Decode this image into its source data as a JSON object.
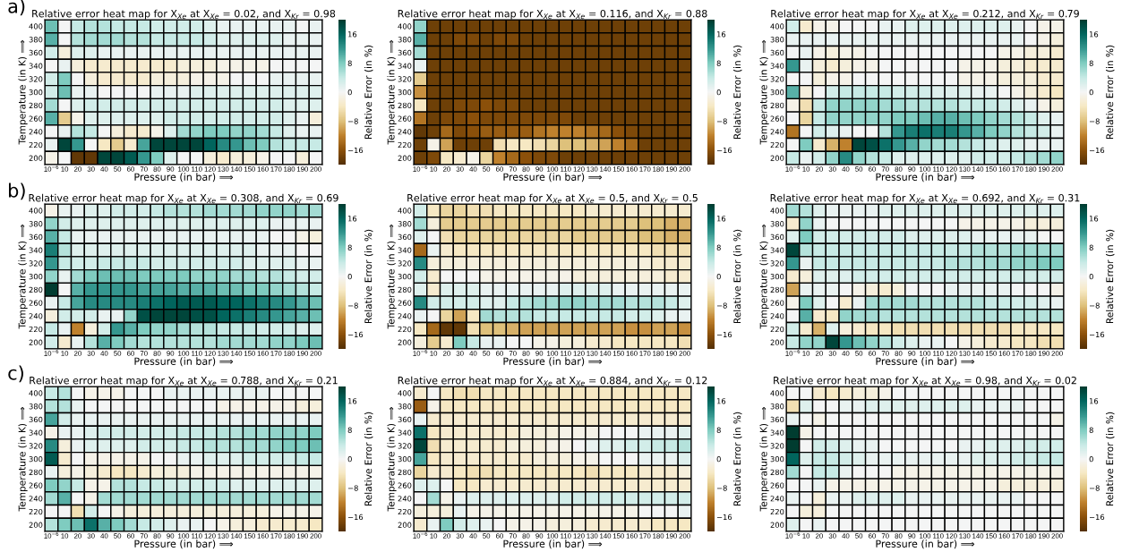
{
  "chart_data": [
    {
      "type": "heatmap",
      "title": "Relative error heat map for X$_{Xe}$ at X$_{Xe}$ = 0.02, and X$_{Kr}$ = 0.98",
      "xlabel": "Pressure (in bar) ⟹",
      "ylabel": "Temperature (in K) ⟹",
      "clabel": "Relative Error (in %)",
      "annotations": [
        "a)"
      ],
      "categories": [
        "10$^{−6}$",
        "10",
        "20",
        "30",
        "40",
        "50",
        "60",
        "70",
        "80",
        "90",
        "100",
        "110",
        "120",
        "130",
        "140",
        "150",
        "160",
        "170",
        "180",
        "190",
        "200"
      ],
      "y_categories": [
        "400",
        "380",
        "360",
        "340",
        "320",
        "300",
        "280",
        "260",
        "240",
        "220",
        "200"
      ],
      "clim": [
        -20,
        20
      ],
      "cticks": [
        -16,
        -8,
        0,
        8,
        16
      ],
      "cells": [
        [
          9,
          0,
          4,
          5,
          5,
          4,
          4,
          4,
          3,
          3,
          3,
          3,
          2,
          1,
          1,
          1,
          1,
          1,
          1,
          0,
          1
        ],
        [
          10,
          0,
          5,
          6,
          6,
          6,
          5,
          5,
          4,
          4,
          4,
          4,
          3,
          2,
          2,
          2,
          2,
          2,
          1,
          1,
          1
        ],
        [
          3,
          -2,
          2,
          2,
          1,
          1,
          1,
          1,
          1,
          1,
          1,
          1,
          1,
          1,
          1,
          1,
          1,
          1,
          1,
          1,
          1
        ],
        [
          0,
          1,
          -2,
          -3,
          -3,
          -3,
          -3,
          -3,
          -3,
          -3,
          -2,
          -2,
          -2,
          -1,
          -1,
          -1,
          -1,
          0,
          0,
          0,
          0
        ],
        [
          3,
          8,
          0,
          -2,
          -3,
          -3,
          -3,
          -3,
          -2,
          -2,
          -2,
          -1,
          -1,
          -1,
          0,
          0,
          0,
          1,
          1,
          1,
          1
        ],
        [
          3,
          9,
          1,
          1,
          0,
          0,
          0,
          0,
          1,
          1,
          1,
          2,
          2,
          2,
          2,
          2,
          2,
          2,
          2,
          2,
          2
        ],
        [
          6,
          0,
          2,
          3,
          3,
          3,
          3,
          3,
          3,
          3,
          3,
          3,
          3,
          3,
          3,
          3,
          3,
          3,
          2,
          2,
          2
        ],
        [
          10,
          -7,
          -1,
          2,
          2,
          2,
          2,
          2,
          2,
          3,
          3,
          3,
          3,
          3,
          3,
          3,
          3,
          3,
          2,
          1,
          -2
        ],
        [
          0,
          1,
          5,
          4,
          0,
          -2,
          -3,
          -3,
          -1,
          2,
          6,
          7,
          8,
          8,
          7,
          7,
          6,
          4,
          2,
          1,
          1
        ],
        [
          1,
          19,
          12,
          0,
          -4,
          -7,
          -3,
          11,
          19,
          19,
          19,
          19,
          16,
          13,
          12,
          9,
          8,
          5,
          4,
          4,
          4
        ],
        [
          -1,
          0,
          -19,
          -19,
          19,
          19,
          17,
          12,
          8,
          2,
          0,
          0,
          -2,
          -3,
          -2,
          -2,
          -1,
          0,
          0,
          -2,
          0
        ]
      ]
    },
    {
      "type": "heatmap",
      "title": "Relative error heat map for X$_{Xe}$ at X$_{Xe}$ = 0.116, and X$_{Kr}$ = 0.88",
      "xlabel": "Pressure (in bar) ⟹",
      "ylabel": "Temperature (in K) ⟹",
      "clabel": "Relative Error (in %)",
      "categories": [
        "10$^{−6}$",
        "10",
        "20",
        "30",
        "40",
        "50",
        "60",
        "70",
        "80",
        "90",
        "100",
        "110",
        "120",
        "130",
        "140",
        "150",
        "160",
        "170",
        "180",
        "190",
        "200"
      ],
      "y_categories": [
        "400",
        "380",
        "360",
        "340",
        "320",
        "300",
        "280",
        "260",
        "240",
        "220",
        "200"
      ],
      "clim": [
        -20,
        20
      ],
      "cticks": [
        -16,
        -8,
        0,
        8,
        16
      ],
      "cells": [
        [
          7,
          -18,
          -18,
          -18,
          -18,
          -18,
          -18,
          -18,
          -18,
          -18,
          -18,
          -18,
          -18,
          -18,
          -18,
          -18,
          -18,
          -18,
          -18,
          -18,
          -18
        ],
        [
          10,
          -18,
          -18,
          -17,
          -17,
          -18,
          -17,
          -17,
          -18,
          -18,
          -18,
          -18,
          -18,
          -18,
          -18,
          -18,
          -18,
          -18,
          -18,
          -18,
          -18
        ],
        [
          6,
          -18,
          -18,
          -18,
          -18,
          -18,
          -18,
          -18,
          -18,
          -18,
          -18,
          -18,
          -18,
          -18,
          -18,
          -18,
          -18,
          -18,
          -18,
          -18,
          -18
        ],
        [
          1,
          -18,
          -18,
          -18,
          -18,
          -18,
          -18,
          -18,
          -18,
          -18,
          -18,
          -18,
          -18,
          -18,
          -18,
          -18,
          -18,
          -18,
          -18,
          -18,
          -18
        ],
        [
          -7,
          -18,
          -18,
          -18,
          -18,
          -18,
          -18,
          -18,
          -18,
          -18,
          -18,
          -18,
          -18,
          -18,
          -18,
          -18,
          -18,
          -18,
          -18,
          -18,
          -18
        ],
        [
          -11,
          -18,
          -18,
          -18,
          -18,
          -18,
          -18,
          -18,
          -18,
          -18,
          -18,
          -18,
          -18,
          -18,
          -18,
          -18,
          -18,
          -18,
          -18,
          -18,
          -18
        ],
        [
          -4,
          -18,
          -18,
          -17,
          -17,
          -16,
          -17,
          -17,
          -18,
          -18,
          -18,
          -18,
          -18,
          -18,
          -18,
          -18,
          -18,
          -18,
          -18,
          -18,
          -18
        ],
        [
          -13,
          -18,
          -17,
          -17,
          -16,
          -17,
          -17,
          -17,
          -17,
          -17,
          -17,
          -17,
          -18,
          -18,
          -18,
          -18,
          -18,
          -18,
          -18,
          -18,
          -18
        ],
        [
          -19,
          -18,
          -14,
          -17,
          -16,
          -15,
          -15,
          -15,
          -15,
          -13,
          -12,
          -12,
          -12,
          -13,
          -14,
          -16,
          -17,
          -18,
          -18,
          -18,
          -18
        ],
        [
          -18,
          -1,
          -10,
          -18,
          -18,
          -18,
          -5,
          -4,
          -4,
          -5,
          -6,
          -8,
          -8,
          -9,
          -10,
          -12,
          -14,
          -18,
          -18,
          -18,
          -18
        ],
        [
          -18,
          -17,
          -4,
          -3,
          -1,
          -6,
          -12,
          -14,
          -16,
          -17,
          -17,
          -18,
          -18,
          -18,
          -18,
          -18,
          -18,
          -18,
          -18,
          -18,
          -18
        ]
      ]
    },
    {
      "type": "heatmap",
      "title": "Relative error heat map for X$_{Xe}$ at X$_{Xe}$ = 0.212, and X$_{Kr}$ = 0.79",
      "xlabel": "Pressure (in bar) ⟹",
      "ylabel": "Temperature (in K) ⟹",
      "clabel": "Relative Error (in %)",
      "categories": [
        "10$^{−6}$",
        "10",
        "20",
        "30",
        "40",
        "50",
        "60",
        "70",
        "80",
        "90",
        "100",
        "110",
        "120",
        "130",
        "140",
        "150",
        "160",
        "170",
        "180",
        "190",
        "200"
      ],
      "y_categories": [
        "400",
        "380",
        "360",
        "340",
        "320",
        "300",
        "280",
        "260",
        "240",
        "220",
        "200"
      ],
      "clim": [
        -20,
        20
      ],
      "cticks": [
        -16,
        -8,
        0,
        8,
        16
      ],
      "cells": [
        [
          3,
          -3,
          -1,
          -1,
          0,
          0,
          0,
          1,
          1,
          2,
          2,
          2,
          2,
          2,
          2,
          2,
          2,
          1,
          0,
          -1,
          -1
        ],
        [
          1,
          1,
          1,
          1,
          1,
          1,
          1,
          1,
          1,
          1,
          1,
          1,
          1,
          1,
          1,
          1,
          1,
          1,
          0,
          -1,
          -2
        ],
        [
          0,
          1,
          -1,
          -2,
          -1,
          -1,
          0,
          0,
          0,
          0,
          0,
          0,
          0,
          0,
          0,
          0,
          -1,
          -1,
          -2,
          -2,
          -3
        ],
        [
          12,
          1,
          -2,
          -3,
          -2,
          -1,
          -1,
          0,
          0,
          0,
          0,
          0,
          0,
          -1,
          -1,
          -1,
          -2,
          -2,
          -3,
          -3,
          -3
        ],
        [
          0,
          0,
          -2,
          -1,
          -1,
          0,
          0,
          0,
          0,
          0,
          0,
          0,
          0,
          -1,
          -1,
          -1,
          -2,
          -2,
          -2,
          -3,
          -3
        ],
        [
          10,
          -2,
          0,
          3,
          4,
          4,
          4,
          4,
          3,
          3,
          3,
          2,
          2,
          2,
          1,
          1,
          0,
          -1,
          -2,
          -3,
          -4
        ],
        [
          -1,
          -5,
          4,
          7,
          7,
          7,
          7,
          6,
          6,
          5,
          5,
          5,
          5,
          4,
          4,
          4,
          3,
          2,
          1,
          -1,
          -2
        ],
        [
          0,
          -6,
          4,
          7,
          7,
          7,
          7,
          7,
          8,
          8,
          9,
          10,
          10,
          9,
          8,
          7,
          6,
          5,
          4,
          2,
          1
        ],
        [
          -13,
          0,
          3,
          2,
          1,
          0,
          0,
          5,
          12,
          14,
          15,
          14,
          14,
          12,
          10,
          8,
          7,
          5,
          4,
          3,
          1
        ],
        [
          0,
          8,
          -3,
          -9,
          -12,
          19,
          18,
          15,
          12,
          10,
          7,
          6,
          6,
          5,
          4,
          3,
          2,
          2,
          1,
          1,
          1
        ],
        [
          4,
          1,
          3,
          7,
          13,
          7,
          5,
          4,
          2,
          2,
          2,
          2,
          2,
          2,
          3,
          3,
          3,
          4,
          5,
          6,
          7
        ]
      ]
    },
    {
      "type": "heatmap",
      "title": "Relative error heat map for X$_{Xe}$ at X$_{Xe}$ = 0.308, and X$_{Kr}$ = 0.69",
      "xlabel": "Pressure (in bar) ⟹",
      "ylabel": "Temperature (in K) ⟹",
      "clabel": "Relative Error (in %)",
      "annotations": [
        "b)"
      ],
      "categories": [
        "10$^{−6}$",
        "10",
        "20",
        "30",
        "40",
        "50",
        "60",
        "70",
        "80",
        "90",
        "100",
        "110",
        "120",
        "130",
        "140",
        "150",
        "160",
        "170",
        "180",
        "190",
        "200"
      ],
      "y_categories": [
        "400",
        "380",
        "360",
        "340",
        "320",
        "300",
        "280",
        "260",
        "240",
        "220",
        "200"
      ],
      "clim": [
        -20,
        20
      ],
      "cticks": [
        -16,
        -8,
        0,
        8,
        16
      ],
      "cells": [
        [
          -1,
          1,
          1,
          2,
          2,
          3,
          3,
          3,
          4,
          5,
          5,
          5,
          6,
          6,
          6,
          6,
          7,
          7,
          7,
          6,
          6
        ],
        [
          7,
          3,
          2,
          2,
          2,
          2,
          2,
          2,
          2,
          2,
          2,
          2,
          2,
          2,
          2,
          2,
          2,
          1,
          1,
          1,
          1
        ],
        [
          10,
          4,
          1,
          1,
          1,
          1,
          1,
          1,
          1,
          1,
          1,
          1,
          1,
          1,
          1,
          1,
          1,
          0,
          0,
          -1,
          -2
        ],
        [
          14,
          5,
          2,
          2,
          2,
          2,
          2,
          2,
          2,
          2,
          2,
          2,
          2,
          2,
          2,
          2,
          1,
          1,
          1,
          0,
          0
        ],
        [
          12,
          4,
          3,
          3,
          4,
          4,
          4,
          4,
          3,
          3,
          3,
          3,
          3,
          3,
          3,
          2,
          2,
          2,
          2,
          1,
          1
        ],
        [
          7,
          1,
          6,
          8,
          9,
          9,
          9,
          8,
          8,
          8,
          8,
          7,
          7,
          7,
          6,
          6,
          5,
          5,
          4,
          3,
          3
        ],
        [
          20,
          0,
          10,
          12,
          12,
          12,
          12,
          11,
          11,
          11,
          10,
          10,
          10,
          9,
          9,
          8,
          8,
          7,
          6,
          5,
          4
        ],
        [
          1,
          4,
          11,
          13,
          13,
          13,
          13,
          14,
          15,
          16,
          17,
          17,
          17,
          16,
          16,
          15,
          14,
          13,
          12,
          10,
          9
        ],
        [
          -2,
          3,
          3,
          3,
          1,
          1,
          7,
          18,
          19,
          19,
          19,
          18,
          18,
          16,
          15,
          14,
          13,
          12,
          11,
          10,
          9
        ],
        [
          4,
          1,
          -12,
          -2,
          3,
          12,
          10,
          8,
          7,
          7,
          6,
          5,
          5,
          4,
          4,
          4,
          3,
          3,
          3,
          2,
          2
        ],
        [
          3,
          -3,
          1,
          5,
          10,
          8,
          6,
          5,
          5,
          5,
          5,
          5,
          5,
          6,
          6,
          6,
          6,
          7,
          7,
          8,
          9
        ]
      ]
    },
    {
      "type": "heatmap",
      "title": "Relative error heat map for X$_{Xe}$ at X$_{Xe}$ = 0.5, and X$_{Kr}$ = 0.5",
      "xlabel": "Pressure (in bar) ⟹",
      "ylabel": "Temperature (in K) ⟹",
      "clabel": "Relative Error (in %)",
      "categories": [
        "10$^{−6}$",
        "10",
        "20",
        "30",
        "40",
        "50",
        "60",
        "70",
        "80",
        "90",
        "100",
        "110",
        "120",
        "130",
        "140",
        "150",
        "160",
        "170",
        "180",
        "190",
        "200"
      ],
      "y_categories": [
        "400",
        "380",
        "360",
        "340",
        "320",
        "300",
        "280",
        "260",
        "240",
        "220",
        "200"
      ],
      "clim": [
        -20,
        20
      ],
      "cticks": [
        -16,
        -8,
        0,
        8,
        16
      ],
      "cells": [
        [
          3,
          -4,
          -6,
          -6,
          -5,
          -5,
          -4,
          -4,
          -4,
          -4,
          -4,
          -4,
          -4,
          -3,
          -3,
          -3,
          -3,
          -3,
          -3,
          -3,
          -3
        ],
        [
          6,
          -2,
          -7,
          -7,
          -7,
          -7,
          -7,
          -7,
          -7,
          -7,
          -7,
          -7,
          -7,
          -7,
          -7,
          -7,
          -7,
          -8,
          -8,
          -9,
          -9
        ],
        [
          2,
          0,
          -5,
          -6,
          -6,
          -6,
          -6,
          -6,
          -6,
          -6,
          -6,
          -6,
          -7,
          -7,
          -7,
          -7,
          -7,
          -8,
          -8,
          -9,
          -9
        ],
        [
          -14,
          1,
          -3,
          -4,
          -4,
          -4,
          -4,
          -4,
          -4,
          -4,
          -4,
          -4,
          -4,
          -4,
          -4,
          -4,
          -4,
          -4,
          -5,
          -5,
          -5
        ],
        [
          13,
          -2,
          -2,
          -2,
          -2,
          -2,
          -2,
          -2,
          -2,
          -2,
          -2,
          -2,
          -2,
          -2,
          -2,
          -2,
          -2,
          -2,
          -3,
          -3,
          -3
        ],
        [
          3,
          -3,
          0,
          0,
          0,
          -1,
          -1,
          -1,
          -1,
          -1,
          -1,
          -1,
          -2,
          -2,
          -2,
          -2,
          -2,
          -2,
          -2,
          -3,
          -3
        ],
        [
          2,
          -3,
          2,
          2,
          2,
          1,
          1,
          1,
          1,
          1,
          1,
          2,
          2,
          2,
          2,
          1,
          1,
          1,
          1,
          1,
          1
        ],
        [
          13,
          3,
          3,
          3,
          3,
          2,
          2,
          4,
          5,
          6,
          6,
          7,
          7,
          6,
          6,
          6,
          5,
          5,
          5,
          4,
          2
        ],
        [
          1,
          0,
          -6,
          -10,
          -4,
          6,
          5,
          5,
          5,
          4,
          4,
          4,
          4,
          4,
          4,
          4,
          3,
          3,
          2,
          1,
          1
        ],
        [
          -4,
          -14,
          -19,
          -19,
          -5,
          -8,
          -8,
          -9,
          -10,
          -10,
          -10,
          -10,
          -10,
          -10,
          -10,
          -10,
          -11,
          -11,
          -10,
          -10,
          -11
        ],
        [
          -2,
          -7,
          -3,
          8,
          4,
          1,
          1,
          0,
          0,
          -1,
          -1,
          -2,
          -2,
          -3,
          -3,
          -4,
          -4,
          -4,
          -4,
          -4,
          -5
        ]
      ]
    },
    {
      "type": "heatmap",
      "title": "Relative error heat map for X$_{Xe}$ at X$_{Xe}$ = 0.692, and X$_{Kr}$ = 0.31",
      "xlabel": "Pressure (in bar) ⟹",
      "ylabel": "Temperature (in K) ⟹",
      "clabel": "Relative Error (in %)",
      "categories": [
        "10$^{−6}$",
        "10",
        "20",
        "30",
        "40",
        "50",
        "60",
        "70",
        "80",
        "90",
        "100",
        "110",
        "120",
        "130",
        "140",
        "150",
        "160",
        "170",
        "180",
        "190",
        "200"
      ],
      "y_categories": [
        "400",
        "380",
        "360",
        "340",
        "320",
        "300",
        "280",
        "260",
        "240",
        "220",
        "200"
      ],
      "clim": [
        -20,
        20
      ],
      "cticks": [
        -16,
        -8,
        0,
        8,
        16
      ],
      "cells": [
        [
          6,
          5,
          2,
          1,
          1,
          1,
          1,
          2,
          2,
          2,
          2,
          2,
          2,
          2,
          2,
          2,
          2,
          2,
          2,
          2,
          2
        ],
        [
          -3,
          7,
          1,
          0,
          0,
          0,
          0,
          0,
          0,
          0,
          0,
          0,
          0,
          -1,
          -1,
          -1,
          -1,
          -1,
          -2,
          -2,
          -2
        ],
        [
          2,
          8,
          3,
          3,
          3,
          3,
          3,
          3,
          3,
          2,
          2,
          2,
          2,
          2,
          1,
          1,
          1,
          1,
          1,
          0,
          0
        ],
        [
          19,
          5,
          4,
          4,
          4,
          4,
          4,
          4,
          4,
          4,
          4,
          4,
          4,
          4,
          5,
          5,
          5,
          6,
          6,
          6,
          6
        ],
        [
          12,
          1,
          4,
          4,
          4,
          4,
          4,
          4,
          4,
          4,
          4,
          4,
          5,
          5,
          5,
          6,
          6,
          7,
          7,
          8,
          8
        ],
        [
          -3,
          -2,
          2,
          2,
          2,
          3,
          3,
          3,
          3,
          3,
          3,
          3,
          3,
          3,
          3,
          3,
          3,
          3,
          3,
          3,
          3
        ],
        [
          -10,
          1,
          1,
          1,
          0,
          -1,
          -2,
          -3,
          -2,
          0,
          0,
          0,
          1,
          1,
          1,
          1,
          1,
          0,
          0,
          0,
          -1
        ],
        [
          -1,
          8,
          2,
          0,
          -3,
          1,
          6,
          6,
          6,
          6,
          5,
          5,
          5,
          5,
          5,
          4,
          4,
          3,
          3,
          2,
          1
        ],
        [
          0,
          10,
          -3,
          -4,
          7,
          6,
          6,
          5,
          5,
          5,
          5,
          5,
          5,
          5,
          5,
          5,
          5,
          5,
          5,
          5,
          5
        ],
        [
          3,
          -3,
          -9,
          2,
          -2,
          -3,
          -4,
          -4,
          -5,
          -5,
          -5,
          -5,
          -5,
          -5,
          -5,
          -5,
          -5,
          -4,
          -4,
          -4,
          -4
        ],
        [
          4,
          7,
          7,
          19,
          12,
          9,
          7,
          5,
          3,
          2,
          1,
          1,
          0,
          -1,
          -2,
          -3,
          -3,
          -4,
          -4,
          -5,
          -5
        ]
      ]
    },
    {
      "type": "heatmap",
      "title": "Relative error heat map for X$_{Xe}$ at X$_{Xe}$ = 0.788, and X$_{Kr}$ = 0.21",
      "xlabel": "Pressure (in bar) ⟹",
      "ylabel": "Temperature (in K) ⟹",
      "clabel": "Relative Error (in %)",
      "annotations": [
        "c)"
      ],
      "categories": [
        "10$^{−6}$",
        "10",
        "20",
        "30",
        "40",
        "50",
        "60",
        "70",
        "80",
        "90",
        "100",
        "110",
        "120",
        "130",
        "140",
        "150",
        "160",
        "170",
        "180",
        "190",
        "200"
      ],
      "y_categories": [
        "400",
        "380",
        "360",
        "340",
        "320",
        "300",
        "280",
        "260",
        "240",
        "220",
        "200"
      ],
      "clim": [
        -20,
        20
      ],
      "cticks": [
        -16,
        -8,
        0,
        8,
        16
      ],
      "cells": [
        [
          4,
          5,
          0,
          -1,
          -1,
          -1,
          0,
          0,
          0,
          1,
          1,
          1,
          1,
          1,
          1,
          1,
          1,
          0,
          0,
          0,
          0
        ],
        [
          5,
          5,
          1,
          0,
          0,
          0,
          0,
          0,
          0,
          0,
          0,
          0,
          0,
          -1,
          -1,
          -1,
          -1,
          -1,
          -1,
          -2,
          -2
        ],
        [
          11,
          3,
          1,
          1,
          1,
          1,
          1,
          1,
          1,
          1,
          1,
          1,
          1,
          1,
          1,
          1,
          1,
          1,
          1,
          1,
          1
        ],
        [
          -1,
          1,
          1,
          2,
          3,
          3,
          3,
          3,
          3,
          3,
          4,
          4,
          4,
          5,
          5,
          6,
          6,
          7,
          7,
          7,
          8
        ],
        [
          13,
          -2,
          1,
          2,
          2,
          2,
          2,
          3,
          3,
          3,
          4,
          4,
          5,
          5,
          5,
          6,
          6,
          7,
          8,
          8,
          9
        ],
        [
          17,
          -3,
          0,
          -1,
          -1,
          -1,
          -1,
          -1,
          0,
          0,
          1,
          1,
          2,
          2,
          2,
          3,
          3,
          3,
          3,
          4,
          4
        ],
        [
          1,
          -2,
          -1,
          -2,
          -3,
          -4,
          -4,
          -3,
          -2,
          -2,
          -2,
          -1,
          -1,
          -1,
          -1,
          -1,
          -1,
          -1,
          -1,
          -1,
          -1
        ],
        [
          8,
          7,
          4,
          -1,
          -1,
          5,
          5,
          4,
          4,
          3,
          3,
          3,
          3,
          3,
          2,
          2,
          2,
          2,
          2,
          2,
          2
        ],
        [
          6,
          10,
          0,
          -1,
          6,
          6,
          6,
          6,
          6,
          6,
          6,
          6,
          6,
          6,
          6,
          6,
          6,
          6,
          6,
          6,
          6
        ],
        [
          0,
          0,
          -5,
          3,
          0,
          -1,
          -2,
          -2,
          -2,
          -2,
          -2,
          -2,
          -2,
          -2,
          -2,
          -2,
          -2,
          -1,
          -1,
          -1,
          -1
        ],
        [
          5,
          8,
          9,
          15,
          10,
          8,
          6,
          4,
          3,
          2,
          1,
          1,
          0,
          -1,
          -2,
          -2,
          -3,
          -3,
          -3,
          -3,
          -4
        ]
      ]
    },
    {
      "type": "heatmap",
      "title": "Relative error heat map for X$_{Xe}$ at X$_{Xe}$ = 0.884, and X$_{Kr}$ = 0.12",
      "xlabel": "Pressure (in bar) ⟹",
      "ylabel": "Temperature (in K) ⟹",
      "clabel": "Relative Error (in %)",
      "categories": [
        "10$^{−6}$",
        "10",
        "20",
        "30",
        "40",
        "50",
        "60",
        "70",
        "80",
        "90",
        "100",
        "110",
        "120",
        "130",
        "140",
        "150",
        "160",
        "170",
        "180",
        "190",
        "200"
      ],
      "y_categories": [
        "400",
        "380",
        "360",
        "340",
        "320",
        "300",
        "280",
        "260",
        "240",
        "220",
        "200"
      ],
      "clim": [
        -20,
        20
      ],
      "cticks": [
        -16,
        -8,
        0,
        8,
        16
      ],
      "cells": [
        [
          -3,
          0,
          -4,
          -5,
          -5,
          -4,
          -4,
          -4,
          -4,
          -4,
          -4,
          -4,
          -4,
          -4,
          -4,
          -4,
          -4,
          -4,
          -4,
          -4,
          -4
        ],
        [
          -15,
          -1,
          -4,
          -4,
          -4,
          -4,
          -4,
          -4,
          -4,
          -4,
          -4,
          -4,
          -4,
          -4,
          -4,
          -4,
          -4,
          -4,
          -4,
          -4,
          -4
        ],
        [
          1,
          -3,
          -3,
          -3,
          -3,
          -3,
          -3,
          -3,
          -3,
          -3,
          -3,
          -3,
          -3,
          -3,
          -3,
          -3,
          -3,
          -3,
          -3,
          -3,
          -3
        ],
        [
          15,
          -4,
          -3,
          -3,
          -3,
          -3,
          -3,
          -3,
          -2,
          -2,
          -2,
          -1,
          -1,
          -1,
          0,
          0,
          0,
          1,
          1,
          1,
          2
        ],
        [
          19,
          -5,
          -3,
          -3,
          -3,
          -3,
          -3,
          -2,
          -2,
          -2,
          -1,
          -1,
          0,
          1,
          2,
          2,
          3,
          3,
          4,
          4,
          5
        ],
        [
          11,
          -4,
          -3,
          -3,
          -3,
          -3,
          -3,
          -3,
          -3,
          -2,
          -2,
          -2,
          -1,
          -1,
          0,
          0,
          0,
          1,
          1,
          1,
          2
        ],
        [
          -6,
          -3,
          -3,
          -4,
          -5,
          -5,
          -4,
          -4,
          -4,
          -4,
          -4,
          -4,
          -4,
          -5,
          -4,
          -4,
          -4,
          -3,
          -3,
          -3,
          -2
        ],
        [
          2,
          2,
          0,
          -4,
          -4,
          -3,
          -3,
          -3,
          -3,
          -3,
          -3,
          -3,
          -3,
          -3,
          -3,
          -3,
          -3,
          -3,
          -3,
          -3,
          -3
        ],
        [
          0,
          6,
          -1,
          1,
          2,
          2,
          2,
          2,
          2,
          2,
          2,
          3,
          3,
          3,
          3,
          3,
          3,
          3,
          3,
          3,
          3
        ],
        [
          -2,
          -2,
          -2,
          1,
          -1,
          -1,
          -1,
          -1,
          -1,
          -1,
          -1,
          -1,
          -1,
          -1,
          -1,
          -1,
          -1,
          0,
          0,
          0,
          1
        ],
        [
          -3,
          1,
          8,
          3,
          2,
          1,
          0,
          -1,
          -1,
          -1,
          -2,
          -2,
          -2,
          -3,
          -3,
          -3,
          -3,
          -3,
          -4,
          -4,
          -4
        ]
      ]
    },
    {
      "type": "heatmap",
      "title": "Relative error heat map for X$_{Xe}$ at X$_{Xe}$ = 0.98, and X$_{Kr}$ = 0.02",
      "xlabel": "Pressure (in bar) ⟹",
      "ylabel": "Temperature (in K) ⟹",
      "clabel": "Relative Error (in %)",
      "categories": [
        "10$^{−6}$",
        "10",
        "20",
        "30",
        "40",
        "50",
        "60",
        "70",
        "80",
        "90",
        "100",
        "110",
        "120",
        "130",
        "140",
        "150",
        "160",
        "170",
        "180",
        "190",
        "200"
      ],
      "y_categories": [
        "400",
        "380",
        "360",
        "340",
        "320",
        "300",
        "280",
        "260",
        "240",
        "220",
        "200"
      ],
      "clim": [
        -20,
        20
      ],
      "cticks": [
        -16,
        -8,
        0,
        8,
        16
      ],
      "cells": [
        [
          0,
          0,
          -3,
          -4,
          -3,
          -2,
          -2,
          -1,
          0,
          0,
          0,
          0,
          0,
          0,
          0,
          0,
          0,
          0,
          0,
          0,
          0
        ],
        [
          -5,
          2,
          0,
          0,
          1,
          1,
          2,
          2,
          2,
          2,
          2,
          2,
          2,
          2,
          1,
          1,
          1,
          1,
          0,
          0,
          0
        ],
        [
          1,
          0,
          -1,
          0,
          0,
          0,
          0,
          0,
          0,
          0,
          0,
          0,
          0,
          0,
          0,
          0,
          0,
          0,
          0,
          0,
          -1
        ],
        [
          20,
          -1,
          0,
          0,
          0,
          0,
          0,
          0,
          0,
          0,
          0,
          0,
          0,
          0,
          0,
          0,
          0,
          0,
          0,
          0,
          0
        ],
        [
          20,
          0,
          3,
          3,
          2,
          1,
          1,
          0,
          0,
          0,
          0,
          0,
          0,
          1,
          1,
          2,
          2,
          2,
          3,
          3,
          3
        ],
        [
          16,
          2,
          4,
          4,
          3,
          2,
          1,
          1,
          1,
          1,
          1,
          1,
          1,
          1,
          2,
          2,
          2,
          3,
          3,
          4,
          4
        ],
        [
          6,
          0,
          4,
          4,
          1,
          0,
          0,
          0,
          -1,
          -1,
          -1,
          -1,
          -1,
          -1,
          -1,
          -1,
          -1,
          -1,
          -1,
          -1,
          -1
        ],
        [
          0,
          0,
          1,
          -1,
          -1,
          -1,
          -1,
          -1,
          -1,
          -1,
          -1,
          -1,
          -1,
          -1,
          -1,
          -1,
          -2,
          -2,
          -2,
          -2,
          -2
        ],
        [
          1,
          0,
          -2,
          1,
          1,
          2,
          2,
          2,
          2,
          1,
          1,
          1,
          1,
          1,
          1,
          1,
          1,
          1,
          0,
          0,
          0
        ],
        [
          0,
          -2,
          -2,
          0,
          0,
          0,
          0,
          0,
          0,
          0,
          0,
          0,
          0,
          0,
          0,
          0,
          0,
          0,
          0,
          0,
          0
        ],
        [
          2,
          0,
          1,
          0,
          0,
          0,
          0,
          0,
          0,
          0,
          0,
          0,
          0,
          0,
          0,
          0,
          0,
          0,
          0,
          0,
          0
        ]
      ]
    }
  ]
}
